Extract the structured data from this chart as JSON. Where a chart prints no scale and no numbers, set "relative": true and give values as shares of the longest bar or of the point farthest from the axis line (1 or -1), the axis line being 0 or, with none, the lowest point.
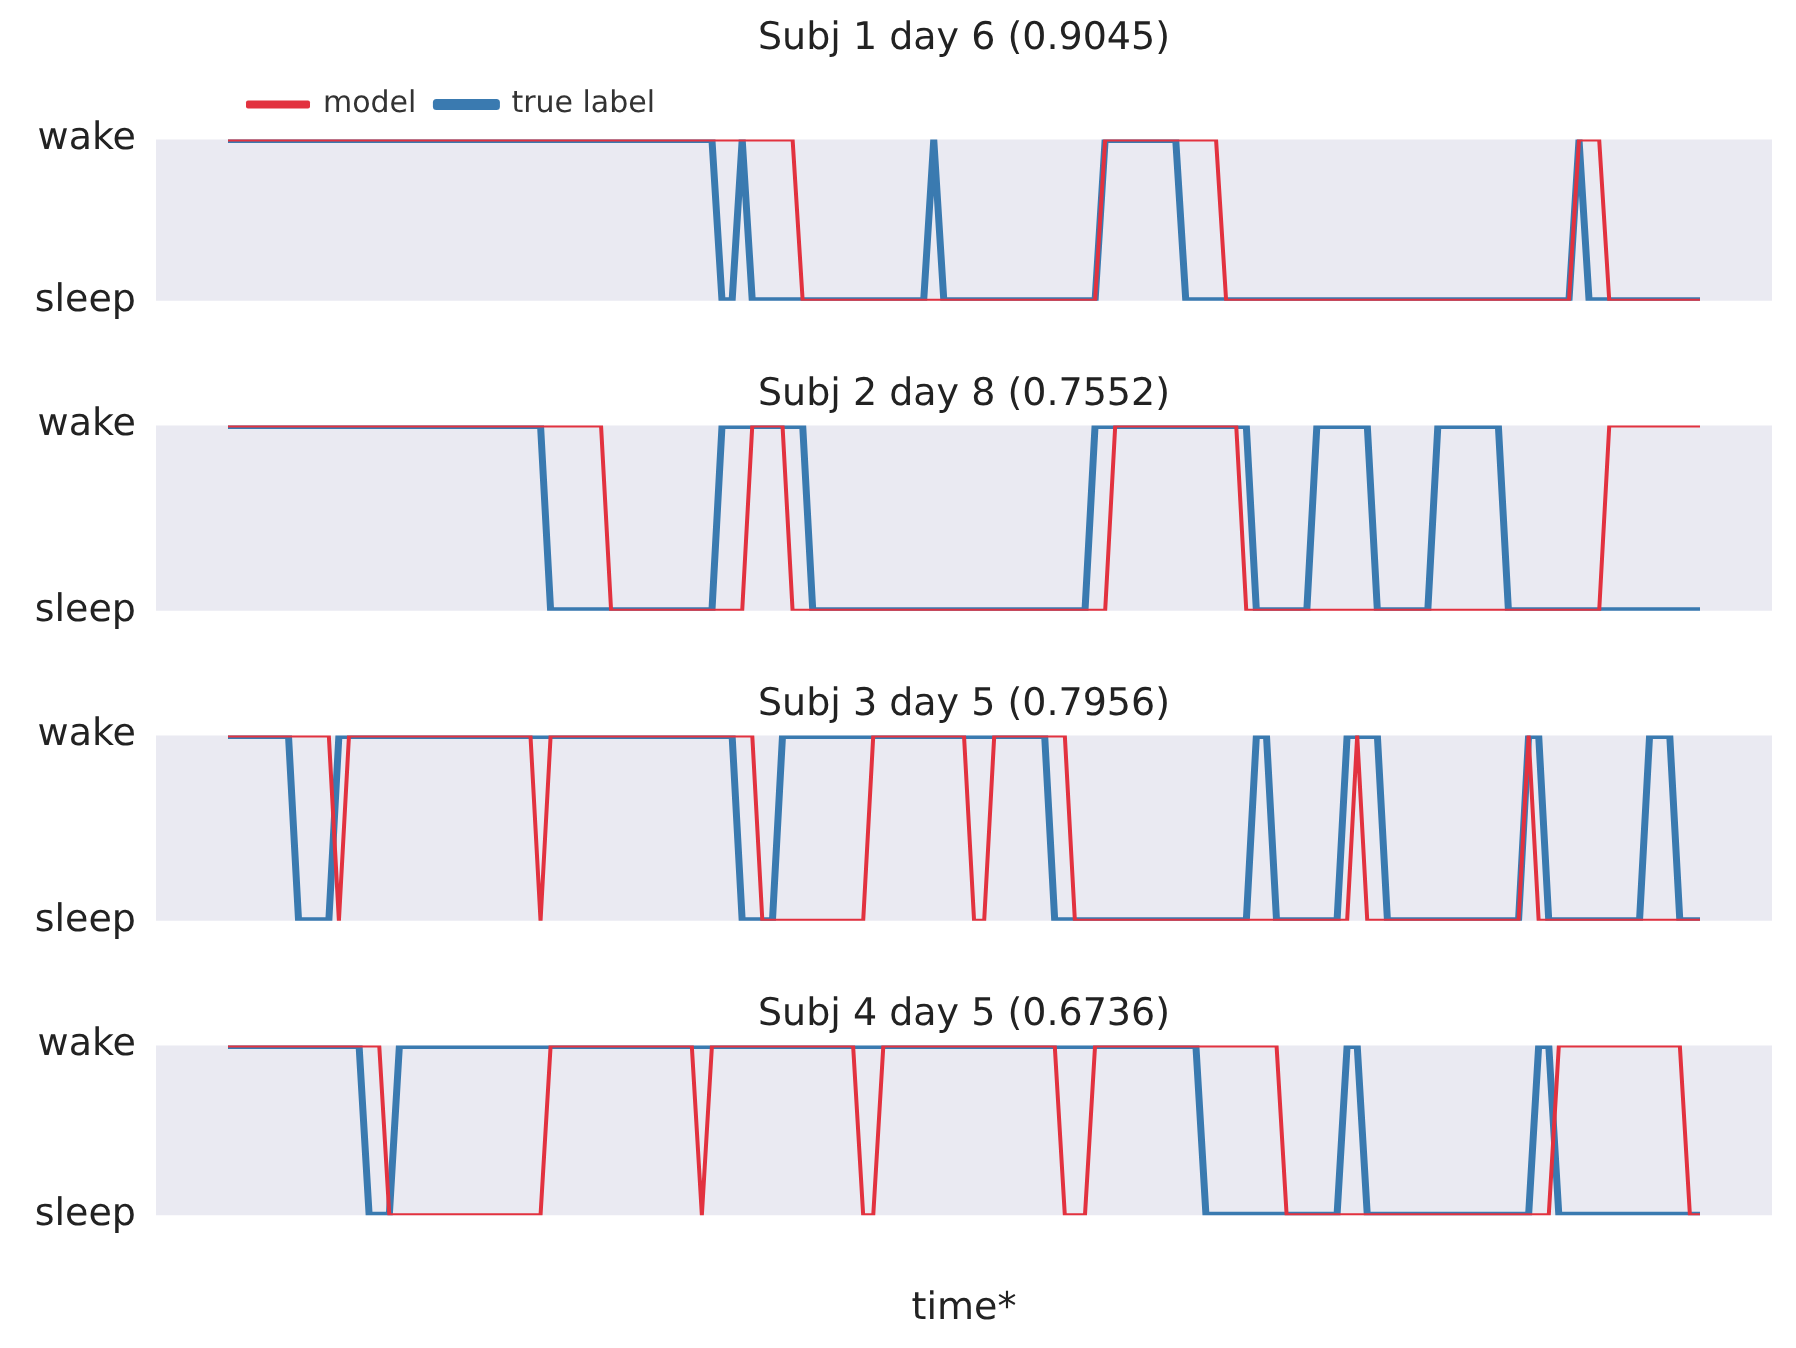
{
  "chart_data": [
    {
      "type": "line",
      "title": "Subj 1 day 6 (0.9045)",
      "relative": true,
      "annotations": [
        "wake",
        "sleep"
      ],
      "categories": [
        null,
        null,
        null,
        null,
        null,
        null,
        null,
        null,
        null,
        null,
        null,
        null,
        null,
        null,
        null,
        null,
        null,
        null,
        null,
        null,
        null,
        null,
        null,
        null,
        null,
        null,
        null,
        null,
        null,
        null,
        null,
        null,
        null,
        null,
        null,
        null,
        null,
        null,
        null,
        null,
        null,
        null,
        null,
        null,
        null,
        null,
        null,
        null,
        null,
        null,
        null,
        null,
        null,
        null,
        null,
        null,
        null,
        null,
        null,
        null,
        null,
        null,
        null,
        null,
        null,
        null,
        null,
        null,
        null,
        null,
        null,
        null,
        null,
        null,
        null,
        null,
        null,
        null,
        null,
        null,
        null,
        null,
        null,
        null,
        null,
        null,
        null,
        null,
        null,
        null,
        null,
        null,
        null,
        null,
        null,
        null,
        null,
        null,
        null,
        null,
        null,
        null,
        null,
        null,
        null,
        null,
        null,
        null,
        null,
        null,
        null,
        null,
        null,
        null,
        null,
        null,
        null,
        null,
        null,
        null,
        null,
        null,
        null,
        null,
        null,
        null,
        null,
        null,
        null,
        null,
        null,
        null,
        null,
        null,
        null,
        null,
        null,
        null,
        null,
        null,
        null,
        null,
        null,
        null,
        null,
        null,
        null
      ],
      "grid": false,
      "legend": "top left",
      "marker": "none",
      "series": [
        {
          "name": "true label",
          "color": "#3a7ab0",
          "values": [
            1,
            1,
            1,
            1,
            1,
            1,
            1,
            1,
            1,
            1,
            1,
            1,
            1,
            1,
            1,
            1,
            1,
            1,
            1,
            1,
            1,
            1,
            1,
            1,
            1,
            1,
            1,
            1,
            1,
            1,
            1,
            1,
            1,
            1,
            1,
            1,
            1,
            1,
            1,
            1,
            1,
            1,
            1,
            1,
            1,
            1,
            1,
            1,
            1,
            0,
            0,
            1,
            0,
            0,
            0,
            0,
            0,
            0,
            0,
            0,
            0,
            0,
            0,
            0,
            0,
            0,
            0,
            0,
            0,
            0,
            1,
            0,
            0,
            0,
            0,
            0,
            0,
            0,
            0,
            0,
            0,
            0,
            0,
            0,
            0,
            0,
            0,
            1,
            1,
            1,
            1,
            1,
            1,
            1,
            1,
            0,
            0,
            0,
            0,
            0,
            0,
            0,
            0,
            0,
            0,
            0,
            0,
            0,
            0,
            0,
            0,
            0,
            0,
            0,
            0,
            0,
            0,
            0,
            0,
            0,
            0,
            0,
            0,
            0,
            0,
            0,
            0,
            0,
            0,
            0,
            0,
            0,
            0,
            0,
            1,
            0,
            0,
            0,
            0,
            0,
            0,
            0,
            0,
            0,
            0,
            0,
            0
          ]
        },
        {
          "name": "model",
          "color": "#e2323f",
          "values": [
            1,
            1,
            1,
            1,
            1,
            1,
            1,
            1,
            1,
            1,
            1,
            1,
            1,
            1,
            1,
            1,
            1,
            1,
            1,
            1,
            1,
            1,
            1,
            1,
            1,
            1,
            1,
            1,
            1,
            1,
            1,
            1,
            1,
            1,
            1,
            1,
            1,
            1,
            1,
            1,
            1,
            1,
            1,
            1,
            1,
            1,
            1,
            1,
            1,
            1,
            1,
            1,
            1,
            1,
            1,
            1,
            1,
            0,
            0,
            0,
            0,
            0,
            0,
            0,
            0,
            0,
            0,
            0,
            0,
            0,
            0,
            0,
            0,
            0,
            0,
            0,
            0,
            0,
            0,
            0,
            0,
            0,
            0,
            0,
            0,
            0,
            0,
            1,
            1,
            1,
            1,
            1,
            1,
            1,
            1,
            1,
            1,
            1,
            1,
            0,
            0,
            0,
            0,
            0,
            0,
            0,
            0,
            0,
            0,
            0,
            0,
            0,
            0,
            0,
            0,
            0,
            0,
            0,
            0,
            0,
            0,
            0,
            0,
            0,
            0,
            0,
            0,
            0,
            0,
            0,
            0,
            0,
            0,
            0,
            1,
            1,
            1,
            0,
            0,
            0,
            0,
            0,
            0,
            0,
            0,
            0,
            0
          ]
        }
      ]
    },
    {
      "type": "line",
      "title": "Subj 2 day 8 (0.7552)",
      "relative": true,
      "annotations": [
        "wake",
        "sleep"
      ],
      "categories": [
        null,
        null,
        null,
        null,
        null,
        null,
        null,
        null,
        null,
        null,
        null,
        null,
        null,
        null,
        null,
        null,
        null,
        null,
        null,
        null,
        null,
        null,
        null,
        null,
        null,
        null,
        null,
        null,
        null,
        null,
        null,
        null,
        null,
        null,
        null,
        null,
        null,
        null,
        null,
        null,
        null,
        null,
        null,
        null,
        null,
        null,
        null,
        null,
        null,
        null,
        null,
        null,
        null,
        null,
        null,
        null,
        null,
        null,
        null,
        null,
        null,
        null,
        null,
        null,
        null,
        null,
        null,
        null,
        null,
        null,
        null,
        null,
        null,
        null,
        null,
        null,
        null,
        null,
        null,
        null,
        null,
        null,
        null,
        null,
        null,
        null,
        null,
        null,
        null,
        null,
        null,
        null,
        null,
        null,
        null,
        null,
        null,
        null,
        null,
        null,
        null,
        null,
        null,
        null,
        null,
        null,
        null,
        null,
        null,
        null,
        null,
        null,
        null,
        null,
        null,
        null,
        null,
        null,
        null,
        null,
        null,
        null,
        null,
        null,
        null,
        null,
        null,
        null,
        null,
        null,
        null,
        null,
        null,
        null,
        null,
        null,
        null,
        null,
        null,
        null,
        null,
        null,
        null,
        null,
        null,
        null,
        null
      ],
      "grid": false,
      "marker": "none",
      "series": [
        {
          "color": "#3a7ab0",
          "values": [
            1,
            1,
            1,
            1,
            1,
            1,
            1,
            1,
            1,
            1,
            1,
            1,
            1,
            1,
            1,
            1,
            1,
            1,
            1,
            1,
            1,
            1,
            1,
            1,
            1,
            1,
            1,
            1,
            1,
            1,
            1,
            1,
            0,
            0,
            0,
            0,
            0,
            0,
            0,
            0,
            0,
            0,
            0,
            0,
            0,
            0,
            0,
            0,
            0,
            1,
            1,
            1,
            1,
            1,
            1,
            1,
            1,
            1,
            0,
            0,
            0,
            0,
            0,
            0,
            0,
            0,
            0,
            0,
            0,
            0,
            0,
            0,
            0,
            0,
            0,
            0,
            0,
            0,
            0,
            0,
            0,
            0,
            0,
            0,
            0,
            0,
            1,
            1,
            1,
            1,
            1,
            1,
            1,
            1,
            1,
            1,
            1,
            1,
            1,
            1,
            1,
            1,
            0,
            0,
            0,
            0,
            0,
            0,
            1,
            1,
            1,
            1,
            1,
            1,
            0,
            0,
            0,
            0,
            0,
            0,
            1,
            1,
            1,
            1,
            1,
            1,
            1,
            0,
            0,
            0,
            0,
            0,
            0,
            0,
            0,
            0,
            0,
            0,
            0,
            0,
            0,
            0,
            0,
            0,
            0,
            0,
            0
          ]
        },
        {
          "color": "#e2323f",
          "values": [
            1,
            1,
            1,
            1,
            1,
            1,
            1,
            1,
            1,
            1,
            1,
            1,
            1,
            1,
            1,
            1,
            1,
            1,
            1,
            1,
            1,
            1,
            1,
            1,
            1,
            1,
            1,
            1,
            1,
            1,
            1,
            1,
            1,
            1,
            1,
            1,
            1,
            1,
            0,
            0,
            0,
            0,
            0,
            0,
            0,
            0,
            0,
            0,
            0,
            0,
            0,
            0,
            1,
            1,
            1,
            1,
            0,
            0,
            0,
            0,
            0,
            0,
            0,
            0,
            0,
            0,
            0,
            0,
            0,
            0,
            0,
            0,
            0,
            0,
            0,
            0,
            0,
            0,
            0,
            0,
            0,
            0,
            0,
            0,
            0,
            0,
            0,
            0,
            1,
            1,
            1,
            1,
            1,
            1,
            1,
            1,
            1,
            1,
            1,
            1,
            1,
            0,
            0,
            0,
            0,
            0,
            0,
            0,
            0,
            0,
            0,
            0,
            0,
            0,
            0,
            0,
            0,
            0,
            0,
            0,
            0,
            0,
            0,
            0,
            0,
            0,
            0,
            0,
            0,
            0,
            0,
            0,
            0,
            0,
            0,
            0,
            0,
            1,
            1,
            1,
            1,
            1,
            1,
            1,
            1,
            1,
            1
          ]
        }
      ]
    },
    {
      "type": "line",
      "title": "Subj 3 day 5 (0.7956)",
      "relative": true,
      "annotations": [
        "wake",
        "sleep"
      ],
      "categories": [
        null,
        null,
        null,
        null,
        null,
        null,
        null,
        null,
        null,
        null,
        null,
        null,
        null,
        null,
        null,
        null,
        null,
        null,
        null,
        null,
        null,
        null,
        null,
        null,
        null,
        null,
        null,
        null,
        null,
        null,
        null,
        null,
        null,
        null,
        null,
        null,
        null,
        null,
        null,
        null,
        null,
        null,
        null,
        null,
        null,
        null,
        null,
        null,
        null,
        null,
        null,
        null,
        null,
        null,
        null,
        null,
        null,
        null,
        null,
        null,
        null,
        null,
        null,
        null,
        null,
        null,
        null,
        null,
        null,
        null,
        null,
        null,
        null,
        null,
        null,
        null,
        null,
        null,
        null,
        null,
        null,
        null,
        null,
        null,
        null,
        null,
        null,
        null,
        null,
        null,
        null,
        null,
        null,
        null,
        null,
        null,
        null,
        null,
        null,
        null,
        null,
        null,
        null,
        null,
        null,
        null,
        null,
        null,
        null,
        null,
        null,
        null,
        null,
        null,
        null,
        null,
        null,
        null,
        null,
        null,
        null,
        null,
        null,
        null,
        null,
        null,
        null,
        null,
        null,
        null,
        null,
        null,
        null,
        null,
        null,
        null,
        null,
        null,
        null,
        null,
        null,
        null,
        null,
        null,
        null,
        null,
        null
      ],
      "grid": false,
      "marker": "none",
      "series": [
        {
          "color": "#3a7ab0",
          "values": [
            1,
            1,
            1,
            1,
            1,
            1,
            1,
            0,
            0,
            0,
            0,
            1,
            1,
            1,
            1,
            1,
            1,
            1,
            1,
            1,
            1,
            1,
            1,
            1,
            1,
            1,
            1,
            1,
            1,
            1,
            1,
            1,
            1,
            1,
            1,
            1,
            1,
            1,
            1,
            1,
            1,
            1,
            1,
            1,
            1,
            1,
            1,
            1,
            1,
            1,
            1,
            0,
            0,
            0,
            0,
            1,
            1,
            1,
            1,
            1,
            1,
            1,
            1,
            1,
            1,
            1,
            1,
            1,
            1,
            1,
            1,
            1,
            1,
            1,
            1,
            1,
            1,
            1,
            1,
            1,
            1,
            1,
            0,
            0,
            0,
            0,
            0,
            0,
            0,
            0,
            0,
            0,
            0,
            0,
            0,
            0,
            0,
            0,
            0,
            0,
            0,
            0,
            1,
            1,
            0,
            0,
            0,
            0,
            0,
            0,
            0,
            1,
            1,
            1,
            1,
            0,
            0,
            0,
            0,
            0,
            0,
            0,
            0,
            0,
            0,
            0,
            0,
            0,
            0,
            1,
            1,
            0,
            0,
            0,
            0,
            0,
            0,
            0,
            0,
            0,
            0,
            1,
            1,
            1,
            0,
            0,
            0
          ]
        },
        {
          "color": "#e2323f",
          "values": [
            1,
            1,
            1,
            1,
            1,
            1,
            1,
            1,
            1,
            1,
            1,
            0,
            1,
            1,
            1,
            1,
            1,
            1,
            1,
            1,
            1,
            1,
            1,
            1,
            1,
            1,
            1,
            1,
            1,
            1,
            1,
            0,
            1,
            1,
            1,
            1,
            1,
            1,
            1,
            1,
            1,
            1,
            1,
            1,
            1,
            1,
            1,
            1,
            1,
            1,
            1,
            1,
            1,
            0,
            0,
            0,
            0,
            0,
            0,
            0,
            0,
            0,
            0,
            0,
            1,
            1,
            1,
            1,
            1,
            1,
            1,
            1,
            1,
            1,
            0,
            0,
            1,
            1,
            1,
            1,
            1,
            1,
            1,
            1,
            0,
            0,
            0,
            0,
            0,
            0,
            0,
            0,
            0,
            0,
            0,
            0,
            0,
            0,
            0,
            0,
            0,
            0,
            0,
            0,
            0,
            0,
            0,
            0,
            0,
            0,
            0,
            0,
            1,
            0,
            0,
            0,
            0,
            0,
            0,
            0,
            0,
            0,
            0,
            0,
            0,
            0,
            0,
            0,
            0,
            1,
            0,
            0,
            0,
            0,
            0,
            0,
            0,
            0,
            0,
            0,
            0,
            0,
            0,
            0,
            0,
            0,
            0
          ]
        }
      ]
    },
    {
      "type": "line",
      "title": "Subj 4 day 5 (0.6736)",
      "xlabel": "time*",
      "relative": true,
      "annotations": [
        "wake",
        "sleep"
      ],
      "categories": [
        null,
        null,
        null,
        null,
        null,
        null,
        null,
        null,
        null,
        null,
        null,
        null,
        null,
        null,
        null,
        null,
        null,
        null,
        null,
        null,
        null,
        null,
        null,
        null,
        null,
        null,
        null,
        null,
        null,
        null,
        null,
        null,
        null,
        null,
        null,
        null,
        null,
        null,
        null,
        null,
        null,
        null,
        null,
        null,
        null,
        null,
        null,
        null,
        null,
        null,
        null,
        null,
        null,
        null,
        null,
        null,
        null,
        null,
        null,
        null,
        null,
        null,
        null,
        null,
        null,
        null,
        null,
        null,
        null,
        null,
        null,
        null,
        null,
        null,
        null,
        null,
        null,
        null,
        null,
        null,
        null,
        null,
        null,
        null,
        null,
        null,
        null,
        null,
        null,
        null,
        null,
        null,
        null,
        null,
        null,
        null,
        null,
        null,
        null,
        null,
        null,
        null,
        null,
        null,
        null,
        null,
        null,
        null,
        null,
        null,
        null,
        null,
        null,
        null,
        null,
        null,
        null,
        null,
        null,
        null,
        null,
        null,
        null,
        null,
        null,
        null,
        null,
        null,
        null,
        null,
        null,
        null,
        null,
        null,
        null,
        null,
        null,
        null,
        null,
        null,
        null,
        null,
        null,
        null,
        null,
        null,
        null
      ],
      "grid": false,
      "marker": "none",
      "series": [
        {
          "color": "#3a7ab0",
          "values": [
            1,
            1,
            1,
            1,
            1,
            1,
            1,
            1,
            1,
            1,
            1,
            1,
            1,
            1,
            0,
            0,
            0,
            1,
            1,
            1,
            1,
            1,
            1,
            1,
            1,
            1,
            1,
            1,
            1,
            1,
            1,
            1,
            1,
            1,
            1,
            1,
            1,
            1,
            1,
            1,
            1,
            1,
            1,
            1,
            1,
            1,
            1,
            1,
            1,
            1,
            1,
            1,
            1,
            1,
            1,
            1,
            1,
            1,
            1,
            1,
            1,
            1,
            1,
            1,
            1,
            1,
            1,
            1,
            1,
            1,
            1,
            1,
            1,
            1,
            1,
            1,
            1,
            1,
            1,
            1,
            1,
            1,
            1,
            1,
            1,
            1,
            1,
            1,
            1,
            1,
            1,
            1,
            1,
            1,
            1,
            1,
            1,
            0,
            0,
            0,
            0,
            0,
            0,
            0,
            0,
            0,
            0,
            0,
            0,
            0,
            0,
            1,
            1,
            0,
            0,
            0,
            0,
            0,
            0,
            0,
            0,
            0,
            0,
            0,
            0,
            0,
            0,
            0,
            0,
            0,
            1,
            1,
            0,
            0,
            0,
            0,
            0,
            0,
            0,
            0,
            0,
            0,
            0,
            0,
            0,
            0,
            0
          ]
        },
        {
          "color": "#e2323f",
          "values": [
            1,
            1,
            1,
            1,
            1,
            1,
            1,
            1,
            1,
            1,
            1,
            1,
            1,
            1,
            1,
            1,
            0,
            0,
            0,
            0,
            0,
            0,
            0,
            0,
            0,
            0,
            0,
            0,
            0,
            0,
            0,
            0,
            1,
            1,
            1,
            1,
            1,
            1,
            1,
            1,
            1,
            1,
            1,
            1,
            1,
            1,
            1,
            0,
            1,
            1,
            1,
            1,
            1,
            1,
            1,
            1,
            1,
            1,
            1,
            1,
            1,
            1,
            1,
            0,
            0,
            1,
            1,
            1,
            1,
            1,
            1,
            1,
            1,
            1,
            1,
            1,
            1,
            1,
            1,
            1,
            1,
            1,
            1,
            0,
            0,
            0,
            1,
            1,
            1,
            1,
            1,
            1,
            1,
            1,
            1,
            1,
            1,
            1,
            1,
            1,
            1,
            1,
            1,
            1,
            1,
            0,
            0,
            0,
            0,
            0,
            0,
            0,
            0,
            0,
            0,
            0,
            0,
            0,
            0,
            0,
            0,
            0,
            0,
            0,
            0,
            0,
            0,
            0,
            0,
            0,
            0,
            0,
            1,
            1,
            1,
            1,
            1,
            1,
            1,
            1,
            1,
            1,
            1,
            1,
            1,
            0,
            0
          ]
        }
      ]
    }
  ]
}
